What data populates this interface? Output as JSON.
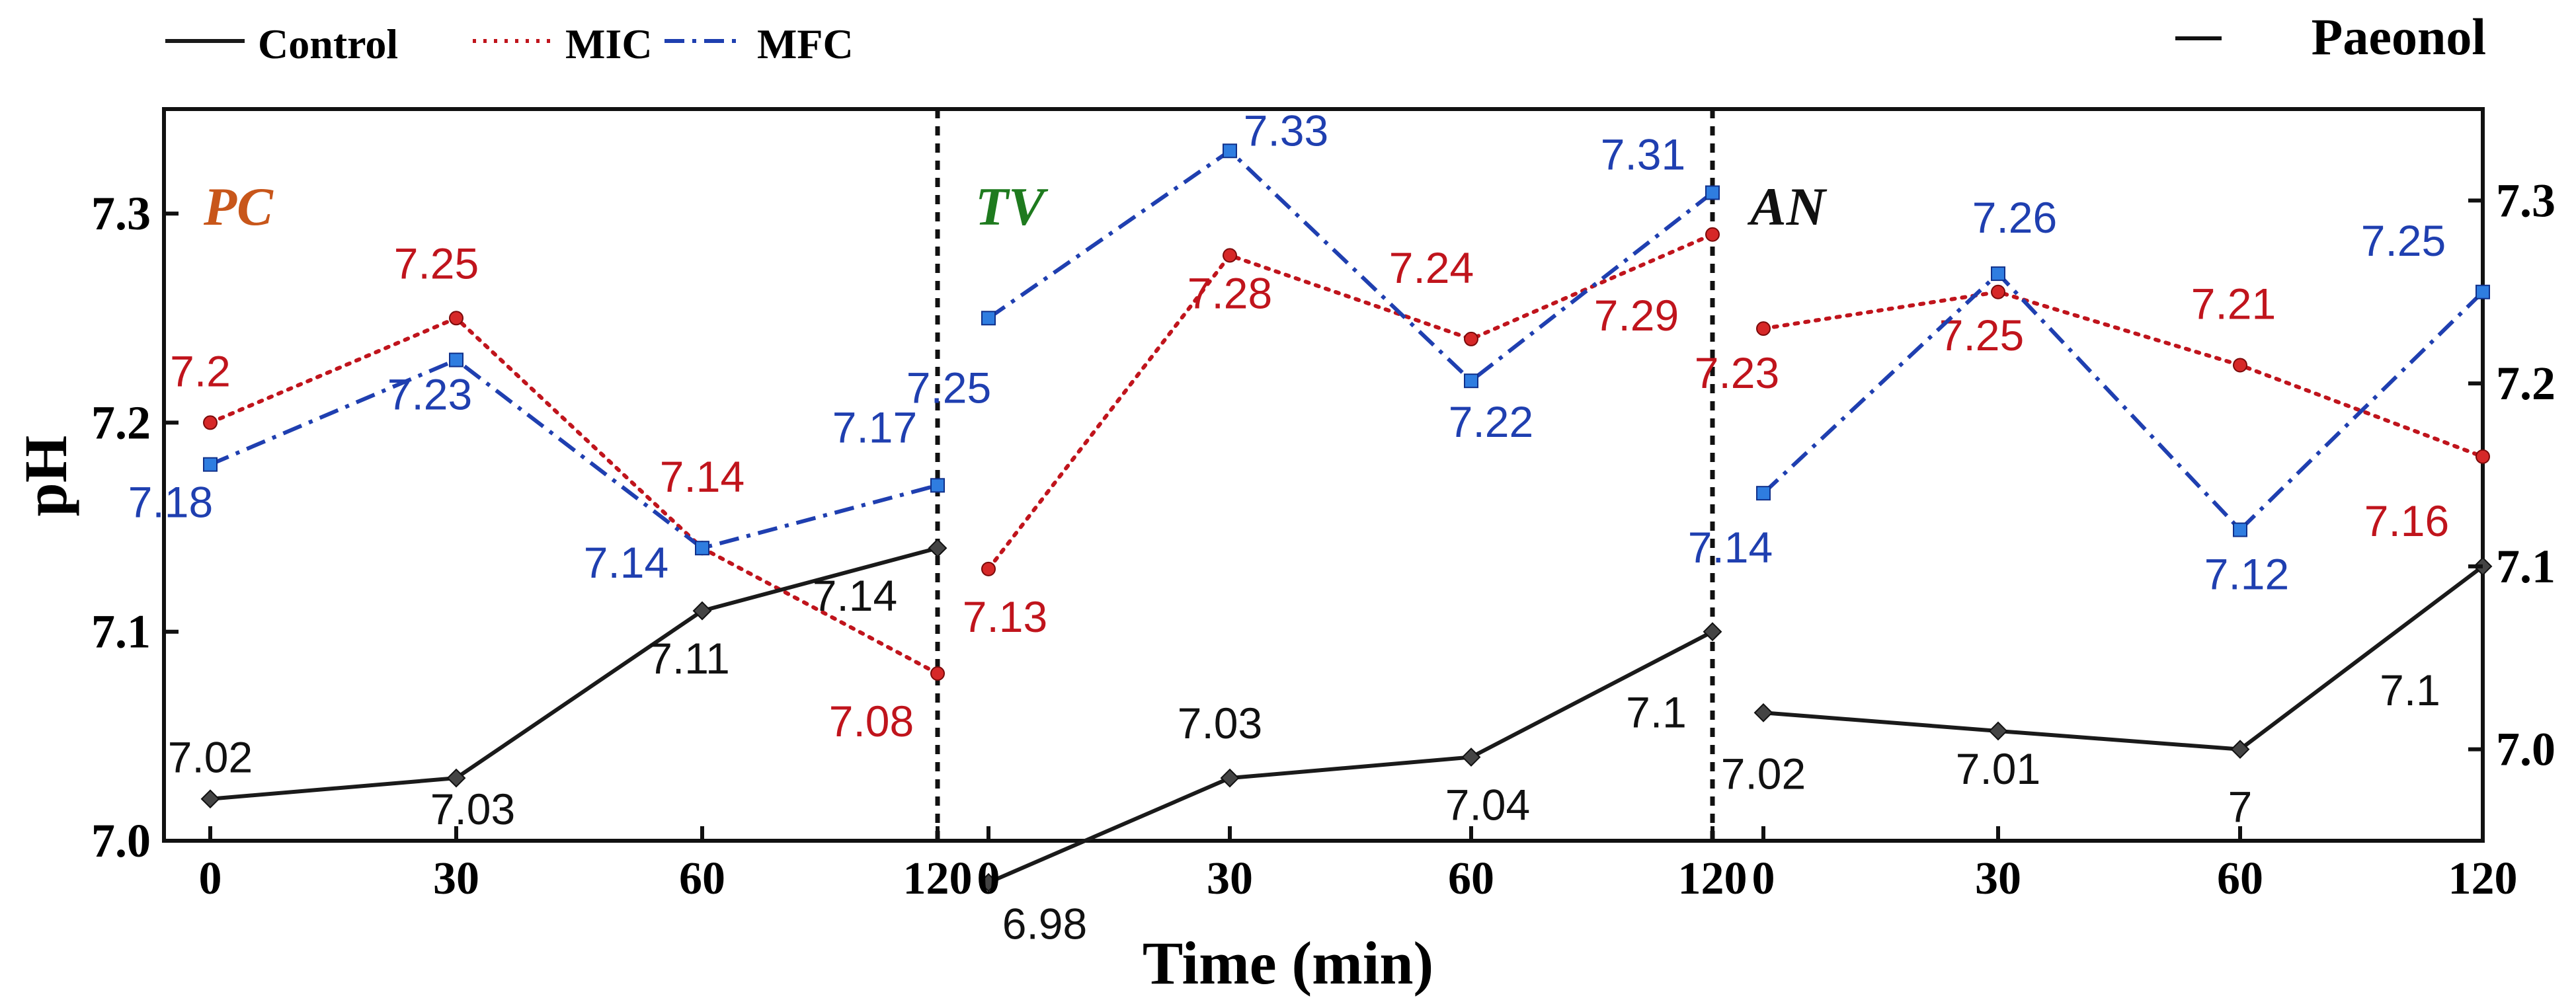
{
  "chart_data": {
    "type": "line",
    "title": "",
    "top_right_label": "Paeonol",
    "xlabel": "Time (min)",
    "ylabel": "pH",
    "x_ticks": [
      "0",
      "30",
      "60",
      "120"
    ],
    "left_axis": {
      "ticks": [
        "7.0",
        "7.1",
        "7.2",
        "7.3"
      ],
      "values": [
        7.0,
        7.1,
        7.2,
        7.3
      ],
      "ylim": [
        7.0,
        7.35
      ]
    },
    "right_axis": {
      "ticks": [
        "7.0",
        "7.1",
        "7.2",
        "7.3"
      ],
      "values": [
        7.0,
        7.1,
        7.2,
        7.3
      ],
      "ylim": [
        6.95,
        7.35
      ]
    },
    "legend": {
      "placement": "top-left",
      "entries": [
        {
          "name": "Control",
          "color": "#1a1a1a",
          "dash": "solid"
        },
        {
          "name": "MIC",
          "color": "#c0141c",
          "dash": "dotted"
        },
        {
          "name": "MFC",
          "color": "#1f3fb0",
          "dash": "dashdot"
        }
      ]
    },
    "panels": [
      {
        "name": "PC",
        "label_color": "#c8561a",
        "axis": "left",
        "series": [
          {
            "name": "MIC",
            "values": [
              7.2,
              7.25,
              7.14,
              7.08
            ],
            "labels": [
              "7.2",
              "7.25",
              "7.14",
              "7.08"
            ]
          },
          {
            "name": "MFC",
            "values": [
              7.18,
              7.23,
              7.14,
              7.17
            ],
            "labels": [
              "7.18",
              "7.23",
              "7.14",
              "7.17"
            ]
          },
          {
            "name": "Control",
            "values": [
              7.02,
              7.03,
              7.11,
              7.14
            ],
            "labels": [
              "7.02",
              "7.03",
              "7.11",
              "7.14"
            ]
          }
        ]
      },
      {
        "name": "TV",
        "label_color": "#1e7a1e",
        "axis": "left",
        "series": [
          {
            "name": "MIC",
            "values": [
              7.13,
              7.28,
              7.24,
              7.29
            ],
            "labels": [
              "7.13",
              "7.28",
              "7.24",
              "7.29"
            ]
          },
          {
            "name": "MFC",
            "values": [
              7.25,
              7.33,
              7.22,
              7.31
            ],
            "labels": [
              "7.25",
              "7.33",
              "7.22",
              "7.31"
            ]
          },
          {
            "name": "Control",
            "values": [
              6.98,
              7.03,
              7.04,
              7.1
            ],
            "labels": [
              "6.98",
              "7.03",
              "7.04",
              "7.1"
            ]
          }
        ]
      },
      {
        "name": "AN",
        "label_color": "#111111",
        "axis": "right",
        "series": [
          {
            "name": "MIC",
            "values": [
              7.23,
              7.25,
              7.21,
              7.16
            ],
            "labels": [
              "7.23",
              "7.25",
              "7.21",
              "7.16"
            ]
          },
          {
            "name": "MFC",
            "values": [
              7.14,
              7.26,
              7.12,
              7.25
            ],
            "labels": [
              "7.14",
              "7.26",
              "7.12",
              "7.25"
            ]
          },
          {
            "name": "Control",
            "values": [
              7.02,
              7.01,
              7.0,
              7.1
            ],
            "labels": [
              "7.02",
              "7.01",
              "7",
              "7.1"
            ]
          }
        ]
      }
    ]
  }
}
